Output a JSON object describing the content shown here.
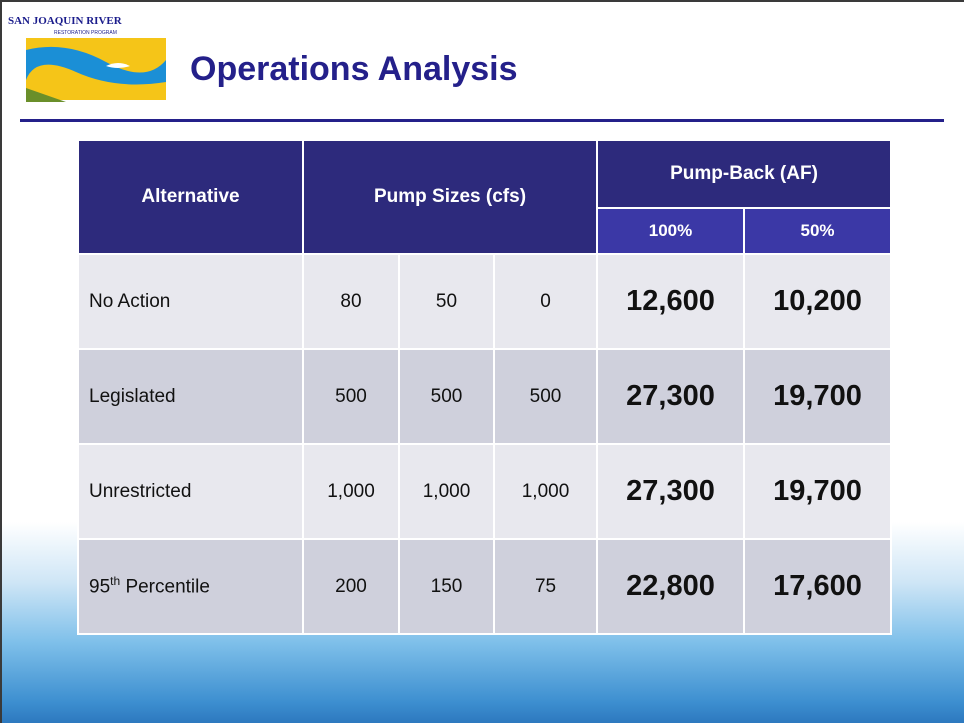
{
  "header": {
    "logo_title": "SAN JOAQUIN RIVER",
    "logo_subtitle": "RESTORATION PROGRAM",
    "title": "Operations Analysis"
  },
  "table": {
    "headers": {
      "alternative": "Alternative",
      "pump_sizes": "Pump Sizes (cfs)",
      "pump_back": "Pump-Back (AF)",
      "pump_back_sub": [
        "100%",
        "50%"
      ]
    },
    "rows": [
      {
        "name": "No Action",
        "pump_sizes": [
          "80",
          "50",
          "0"
        ],
        "pump_back": [
          "12,600",
          "10,200"
        ]
      },
      {
        "name": "Legislated",
        "pump_sizes": [
          "500",
          "500",
          "500"
        ],
        "pump_back": [
          "27,300",
          "19,700"
        ]
      },
      {
        "name": "Unrestricted",
        "pump_sizes": [
          "1,000",
          "1,000",
          "1,000"
        ],
        "pump_back": [
          "27,300",
          "19,700"
        ]
      },
      {
        "name": "95",
        "name_sup": "th",
        "name_rest": "Percentile",
        "pump_sizes": [
          "200",
          "150",
          "75"
        ],
        "pump_back": [
          "22,800",
          "17,600"
        ]
      }
    ]
  }
}
